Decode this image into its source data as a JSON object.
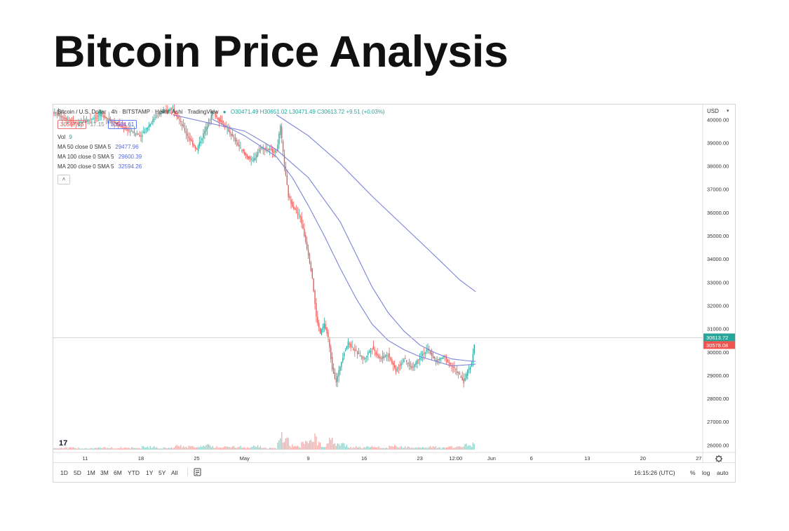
{
  "page": {
    "title": "Bitcoin Price Analysis"
  },
  "chart_header": {
    "symbol": "Bitcoin / U.S. Dollar",
    "interval": "4h",
    "exchange": "BITSTAMP",
    "chart_style": "Heikin Ashi",
    "source": "TradingView",
    "ohlc": "O30471.49 H30651.02 L30471.49 C30613.72 +9.51 (+0.03%)",
    "sell_price": "30567.46",
    "spread": "17.15",
    "buy_price": "30584.61",
    "volume": {
      "label": "Vol",
      "value": "9"
    },
    "ma_lines": [
      {
        "label": "MA 50 close 0 SMA 5",
        "value": "29477.96"
      },
      {
        "label": "MA 100 close 0 SMA 5",
        "value": "29600.39"
      },
      {
        "label": "MA 200 close 0 SMA 5",
        "value": "32594.26"
      }
    ],
    "collapse_glyph": "˄"
  },
  "axis": {
    "currency": "USD",
    "currency_caret": "▾"
  },
  "toolbar": {
    "timeframes": [
      "1D",
      "5D",
      "1M",
      "3M",
      "6M",
      "YTD",
      "1Y",
      "5Y",
      "All"
    ],
    "compare_icon": "compare-icon",
    "clock": "16:15:26 (UTC)",
    "percent_label": "%",
    "log_label": "log",
    "auto_label": "auto"
  },
  "colors": {
    "up": "#26a69a",
    "down": "#ef5350",
    "ma": "#7b83d8",
    "last_price_bg": "#26a69a",
    "prev_price_bg": "#ef5350"
  },
  "chart_data": {
    "type": "candlestick",
    "title": "Bitcoin / U.S. Dollar · 4h · BITSTAMP",
    "yaxis": {
      "ticks": [
        40000,
        39000,
        38000,
        37000,
        36000,
        35000,
        34000,
        33000,
        32000,
        31000,
        30000,
        29000,
        28000,
        27000,
        26000
      ],
      "tick_labels": [
        "40000.00",
        "39000.00",
        "38000.00",
        "37000.00",
        "36000.00",
        "35000.00",
        "34000.00",
        "33000.00",
        "32000.00",
        "31000.00",
        "30000.00",
        "29000.00",
        "28000.00",
        "27000.00",
        "26000.00"
      ],
      "range": [
        25800,
        40400
      ]
    },
    "xaxis": {
      "tick_labels": [
        "11",
        "18",
        "25",
        "May",
        "9",
        "16",
        "23",
        "12:00",
        "Jun",
        "6",
        "13",
        "20",
        "27"
      ],
      "tick_days": [
        -20,
        -13,
        -6,
        0,
        8,
        15,
        22,
        26.5,
        31,
        36,
        43,
        50,
        57
      ],
      "range": [
        -24,
        57.5
      ]
    },
    "price_path": [
      [
        -24,
        40300
      ],
      [
        -21,
        39800
      ],
      [
        -18,
        40200
      ],
      [
        -15,
        39600
      ],
      [
        -13,
        39300
      ],
      [
        -11,
        40200
      ],
      [
        -9,
        40500
      ],
      [
        -7,
        39200
      ],
      [
        -6,
        38700
      ],
      [
        -4,
        40300
      ],
      [
        -2,
        39500
      ],
      [
        0,
        38500
      ],
      [
        1,
        38200
      ],
      [
        2,
        38800
      ],
      [
        4,
        38600
      ],
      [
        4.5,
        39700
      ],
      [
        5,
        38000
      ],
      [
        5.5,
        36700
      ],
      [
        6,
        36300
      ],
      [
        7,
        35800
      ],
      [
        7.5,
        35000
      ],
      [
        8,
        34200
      ],
      [
        8.5,
        33200
      ],
      [
        9,
        31500
      ],
      [
        9.5,
        30800
      ],
      [
        10,
        31200
      ],
      [
        10.5,
        30600
      ],
      [
        11,
        29300
      ],
      [
        11.5,
        28700
      ],
      [
        12,
        29400
      ],
      [
        12.5,
        30000
      ],
      [
        13,
        30400
      ],
      [
        14,
        30000
      ],
      [
        15,
        29700
      ],
      [
        16,
        30200
      ],
      [
        17,
        29700
      ],
      [
        18,
        29900
      ],
      [
        19,
        29200
      ],
      [
        20,
        29700
      ],
      [
        21,
        29300
      ],
      [
        22,
        29800
      ],
      [
        23,
        30100
      ],
      [
        24,
        29600
      ],
      [
        25,
        29800
      ],
      [
        26,
        29400
      ],
      [
        27,
        29000
      ],
      [
        27.5,
        28700
      ],
      [
        28,
        29200
      ],
      [
        28.5,
        29500
      ],
      [
        28.8,
        30300
      ],
      [
        29,
        30614
      ]
    ],
    "series": [
      {
        "name": "MA 50 close 0 SMA 5",
        "points": [
          [
            -4,
            40000
          ],
          [
            0,
            39300
          ],
          [
            4,
            38400
          ],
          [
            6,
            37500
          ],
          [
            8,
            36300
          ],
          [
            10,
            35000
          ],
          [
            12,
            33600
          ],
          [
            14,
            32300
          ],
          [
            16,
            31200
          ],
          [
            18,
            30500
          ],
          [
            20,
            30100
          ],
          [
            22,
            29800
          ],
          [
            24,
            29600
          ],
          [
            26,
            29400
          ],
          [
            28,
            29450
          ],
          [
            29,
            29478
          ]
        ]
      },
      {
        "name": "MA 100 close 0 SMA 5",
        "points": [
          [
            -9,
            40200
          ],
          [
            0,
            39500
          ],
          [
            4,
            38700
          ],
          [
            8,
            37500
          ],
          [
            12,
            35600
          ],
          [
            14,
            34200
          ],
          [
            16,
            32800
          ],
          [
            18,
            31700
          ],
          [
            20,
            30900
          ],
          [
            22,
            30300
          ],
          [
            24,
            29950
          ],
          [
            26,
            29700
          ],
          [
            28,
            29620
          ],
          [
            29,
            29600
          ]
        ]
      },
      {
        "name": "MA 200 close 0 SMA 5",
        "points": [
          [
            4,
            40200
          ],
          [
            8,
            39300
          ],
          [
            12,
            38100
          ],
          [
            16,
            36700
          ],
          [
            20,
            35400
          ],
          [
            24,
            34100
          ],
          [
            27,
            33100
          ],
          [
            29,
            32594
          ]
        ]
      }
    ],
    "price_labels": [
      "30613.72",
      "30578.08"
    ],
    "grid": false,
    "legend": "top-left"
  }
}
